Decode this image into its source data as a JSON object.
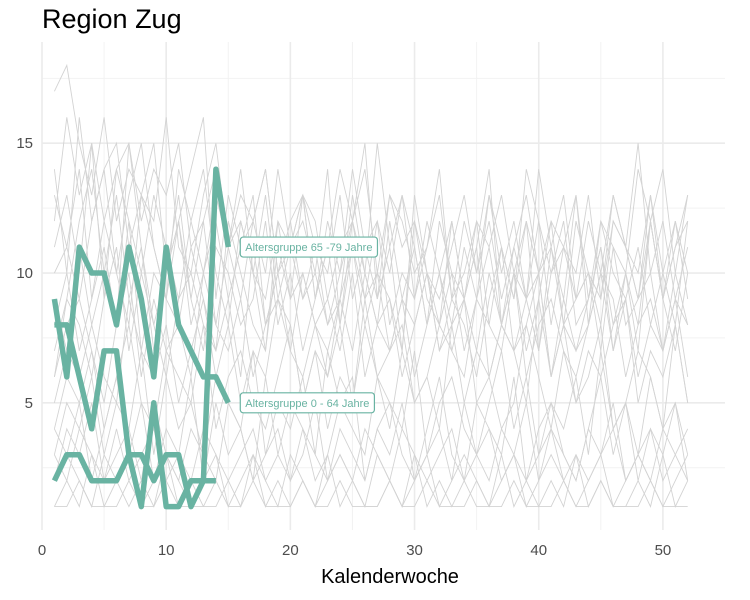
{
  "chart_data": {
    "type": "line",
    "title": "Region Zug",
    "xlabel": "Kalenderwoche",
    "ylabel": "",
    "xlim": [
      0,
      55
    ],
    "ylim": [
      0.1,
      18.9
    ],
    "x_ticks": [
      0,
      10,
      20,
      30,
      40,
      50
    ],
    "y_ticks": [
      5,
      10,
      15
    ],
    "grid": true,
    "highlight_color": "#69b3a2",
    "background_color": "#d3d3d3",
    "highlighted_series": [
      {
        "label": "Altersgruppe 65 -79 Jahre",
        "x": [
          1,
          2,
          3,
          4,
          5,
          6,
          7,
          8,
          9,
          10,
          11,
          12,
          13,
          14,
          15
        ],
        "values": [
          2,
          3,
          3,
          2,
          2,
          2,
          3,
          3,
          2,
          3,
          3,
          1,
          2,
          14,
          11
        ]
      },
      {
        "label": "Altersgruppe 0 - 64 Jahre",
        "x": [
          1,
          2,
          3,
          4,
          5,
          6,
          7,
          8,
          9,
          10,
          11,
          12,
          13,
          14,
          15
        ],
        "values": [
          9,
          6,
          11,
          10,
          10,
          8,
          11,
          9,
          6,
          11,
          8,
          7,
          6,
          6,
          5
        ]
      },
      {
        "label": "",
        "x": [
          1,
          2,
          3,
          4,
          5,
          6,
          7,
          8,
          9,
          10,
          11,
          12,
          13,
          14
        ],
        "values": [
          8,
          8,
          6,
          4,
          7,
          7,
          3,
          1,
          5,
          1,
          1,
          2,
          2,
          2
        ]
      }
    ],
    "background_series": [
      {
        "values": [
          17,
          18,
          15,
          13,
          16,
          12,
          14,
          13,
          12,
          16,
          11,
          10,
          13,
          15,
          11,
          12,
          10,
          9,
          12,
          11,
          9,
          10,
          8,
          9,
          13,
          10,
          8,
          12,
          9,
          8,
          10,
          7,
          8,
          9,
          11,
          6,
          8,
          7,
          9,
          10,
          6,
          8,
          7,
          9,
          11,
          8,
          10,
          7,
          12,
          9,
          11,
          13
        ]
      },
      {
        "values": [
          14,
          10,
          16,
          12,
          14,
          15,
          11,
          13,
          15,
          10,
          12,
          14,
          16,
          9,
          13,
          11,
          12,
          14,
          10,
          12,
          13,
          9,
          11,
          14,
          12,
          10,
          15,
          11,
          13,
          9,
          12,
          10,
          8,
          11,
          9,
          13,
          10,
          12,
          9,
          14,
          11,
          8,
          12,
          10,
          9,
          13,
          11,
          15,
          10,
          12,
          9,
          11
        ]
      },
      {
        "values": [
          12,
          16,
          13,
          15,
          12,
          14,
          15,
          12,
          14,
          13,
          15,
          11,
          12,
          14,
          11,
          13,
          12,
          10,
          14,
          11,
          13,
          12,
          9,
          11,
          12,
          14,
          10,
          13,
          11,
          12,
          10,
          9,
          11,
          13,
          10,
          12,
          9,
          11,
          13,
          10,
          12,
          11,
          9,
          12,
          10,
          13,
          11,
          9,
          12,
          14,
          10,
          13
        ]
      },
      {
        "values": [
          11,
          13,
          10,
          15,
          9,
          14,
          12,
          10,
          13,
          11,
          9,
          12,
          14,
          10,
          8,
          12,
          10,
          13,
          9,
          11,
          12,
          10,
          14,
          8,
          11,
          9,
          12,
          10,
          13,
          11,
          8,
          12,
          10,
          9,
          12,
          11,
          13,
          10,
          9,
          12,
          8,
          11,
          10,
          13,
          9,
          12,
          11,
          10,
          13,
          9,
          12,
          10
        ]
      },
      {
        "values": [
          10,
          11,
          9,
          12,
          14,
          10,
          8,
          13,
          11,
          9,
          12,
          8,
          10,
          12,
          9,
          11,
          13,
          8,
          10,
          12,
          9,
          11,
          10,
          13,
          9,
          11,
          12,
          8,
          10,
          9,
          11,
          13,
          9,
          10,
          12,
          8,
          11,
          9,
          12,
          10,
          11,
          9,
          13,
          8,
          12,
          10,
          9,
          11,
          8,
          10,
          12,
          9
        ]
      },
      {
        "values": [
          9,
          7,
          11,
          8,
          10,
          13,
          9,
          11,
          8,
          10,
          12,
          9,
          7,
          11,
          10,
          8,
          9,
          12,
          8,
          10,
          7,
          9,
          11,
          8,
          12,
          9,
          10,
          7,
          9,
          11,
          8,
          10,
          12,
          9,
          7,
          10,
          8,
          11,
          9,
          7,
          10,
          12,
          8,
          9,
          11,
          7,
          10,
          8,
          12,
          9,
          7,
          10
        ]
      },
      {
        "values": [
          8,
          10,
          7,
          9,
          11,
          8,
          12,
          7,
          10,
          9,
          8,
          11,
          9,
          7,
          12,
          10,
          8,
          7,
          11,
          9,
          10,
          8,
          7,
          9,
          11,
          8,
          10,
          9,
          7,
          12,
          9,
          8,
          10,
          7,
          9,
          11,
          8,
          10,
          7,
          9,
          12,
          8,
          9,
          10,
          7,
          11,
          8,
          9,
          10,
          7,
          9,
          8
        ]
      },
      {
        "values": [
          7,
          9,
          8,
          6,
          9,
          11,
          7,
          10,
          8,
          6,
          9,
          10,
          8,
          7,
          9,
          6,
          11,
          8,
          9,
          7,
          10,
          8,
          6,
          9,
          7,
          10,
          8,
          9,
          6,
          8,
          10,
          7,
          9,
          8,
          6,
          9,
          11,
          7,
          8,
          10,
          6,
          9,
          7,
          8,
          10,
          9,
          6,
          8,
          9,
          7,
          10,
          8
        ]
      },
      {
        "values": [
          6,
          8,
          9,
          7,
          5,
          8,
          10,
          6,
          9,
          7,
          8,
          6,
          10,
          8,
          7,
          9,
          6,
          8,
          10,
          7,
          6,
          8,
          9,
          7,
          10,
          6,
          8,
          7,
          9,
          6,
          8,
          10,
          7,
          6,
          9,
          8,
          7,
          10,
          6,
          8,
          9,
          7,
          6,
          8,
          10,
          7,
          9,
          6,
          8,
          7,
          9,
          6
        ]
      },
      {
        "values": [
          5,
          7,
          6,
          8,
          6,
          5,
          9,
          7,
          6,
          8,
          5,
          7,
          9,
          6,
          8,
          5,
          7,
          6,
          9,
          8,
          5,
          7,
          6,
          8,
          5,
          9,
          6,
          7,
          8,
          5,
          6,
          8,
          7,
          9,
          5,
          6,
          8,
          7,
          5,
          9,
          6,
          8,
          5,
          7,
          6,
          8,
          9,
          5,
          7,
          6,
          8,
          5
        ]
      },
      {
        "values": [
          4,
          6,
          5,
          7,
          4,
          6,
          8,
          5,
          4,
          7,
          6,
          5,
          8,
          4,
          6,
          7,
          5,
          4,
          6,
          8,
          5,
          7,
          4,
          6,
          5,
          8,
          6,
          4,
          7,
          5,
          6,
          4,
          8,
          5,
          7,
          6,
          4,
          5,
          8,
          6,
          4,
          7,
          5,
          6,
          8,
          4,
          5,
          7,
          6,
          4,
          8,
          5
        ]
      },
      {
        "values": [
          3,
          5,
          4,
          6,
          3,
          5,
          4,
          7,
          3,
          6,
          4,
          5,
          3,
          6,
          5,
          4,
          7,
          3,
          5,
          4,
          6,
          3,
          7,
          5,
          4,
          3,
          6,
          5,
          4,
          7,
          3,
          5,
          6,
          4,
          3,
          5,
          7,
          4,
          6,
          3,
          5,
          4,
          6,
          3,
          7,
          4,
          5,
          3,
          6,
          4,
          5,
          3
        ]
      },
      {
        "values": [
          4,
          3,
          5,
          2,
          4,
          6,
          3,
          5,
          2,
          4,
          3,
          6,
          2,
          5,
          3,
          4,
          2,
          6,
          3,
          5,
          4,
          2,
          3,
          5,
          6,
          2,
          4,
          3,
          5,
          2,
          4,
          6,
          3,
          2,
          5,
          4,
          3,
          6,
          2,
          4,
          5,
          3,
          2,
          4,
          6,
          3,
          5,
          2,
          4,
          3,
          5,
          2
        ]
      },
      {
        "values": [
          2,
          4,
          3,
          5,
          2,
          3,
          4,
          2,
          5,
          3,
          2,
          4,
          3,
          2,
          5,
          4,
          2,
          3,
          4,
          2,
          3,
          5,
          2,
          4,
          3,
          2,
          4,
          5,
          3,
          2,
          3,
          4,
          2,
          5,
          3,
          4,
          2,
          3,
          5,
          2,
          4,
          3,
          2,
          4,
          3,
          5,
          2,
          3,
          4,
          2,
          3,
          4
        ]
      },
      {
        "values": [
          3,
          2,
          4,
          3,
          2,
          4,
          2,
          3,
          4,
          2,
          3,
          2,
          4,
          3,
          2,
          3,
          4,
          2,
          3,
          2,
          4,
          3,
          2,
          3,
          2,
          4,
          3,
          2,
          4,
          3,
          2,
          3,
          4,
          2,
          3,
          2,
          4,
          3,
          2,
          3,
          4,
          2,
          3,
          2,
          3,
          4,
          2,
          3,
          2,
          4,
          3,
          2
        ]
      },
      {
        "values": [
          2,
          3,
          2,
          1,
          3,
          2,
          3,
          1,
          2,
          3,
          2,
          1,
          2,
          3,
          1,
          2,
          3,
          2,
          1,
          3,
          2,
          1,
          2,
          3,
          2,
          1,
          3,
          2,
          1,
          2,
          3,
          1,
          2,
          3,
          2,
          1,
          2,
          3,
          1,
          2,
          3,
          2,
          1,
          2,
          3,
          1,
          2,
          3,
          2,
          1,
          2,
          3
        ]
      },
      {
        "values": [
          1,
          2,
          1,
          3,
          1,
          2,
          1,
          2,
          1,
          3,
          1,
          2,
          1,
          1,
          2,
          1,
          3,
          1,
          2,
          1,
          2,
          1,
          3,
          1,
          2,
          1,
          1,
          2,
          1,
          3,
          1,
          2,
          1,
          2,
          1,
          1,
          3,
          1,
          2,
          1,
          2,
          1,
          3,
          1,
          2,
          1,
          1,
          2,
          1,
          3,
          1,
          2
        ]
      },
      {
        "values": [
          1,
          1,
          2,
          1,
          1,
          1,
          2,
          1,
          1,
          2,
          1,
          1,
          1,
          2,
          1,
          1,
          2,
          1,
          1,
          1,
          2,
          1,
          1,
          2,
          1,
          1,
          1,
          2,
          1,
          1,
          2,
          1,
          1,
          1,
          2,
          1,
          1,
          2,
          1,
          1,
          1,
          2,
          1,
          1,
          2,
          1,
          1,
          1,
          2,
          1,
          1,
          1
        ]
      },
      {
        "values": [
          6,
          9,
          12,
          14,
          10,
          8,
          15,
          11,
          7,
          10,
          13,
          9,
          12,
          8,
          11,
          14,
          10,
          7,
          12,
          9,
          13,
          11,
          8,
          10,
          12,
          15,
          9,
          11,
          7,
          13,
          10,
          8,
          12,
          9,
          11,
          14,
          8,
          10,
          12,
          7,
          11,
          13,
          9,
          10,
          8,
          12,
          11,
          9,
          13,
          10,
          8,
          12
        ]
      },
      {
        "values": [
          13,
          11,
          14,
          9,
          12,
          10,
          13,
          15,
          11,
          9,
          14,
          12,
          10,
          13,
          11,
          9,
          12,
          14,
          10,
          11,
          13,
          9,
          12,
          10,
          14,
          11,
          9,
          13,
          12,
          10,
          11,
          14,
          9,
          12,
          10,
          13,
          11,
          9,
          14,
          12,
          10,
          11,
          13,
          9,
          12,
          11,
          10,
          14,
          12,
          9,
          11,
          12
        ]
      }
    ]
  }
}
